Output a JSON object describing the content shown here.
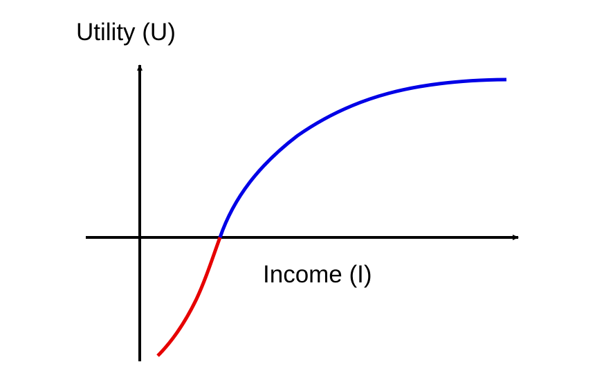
{
  "labels": {
    "y_axis": "Utility (U)",
    "x_axis": "Income (I)"
  }
}
